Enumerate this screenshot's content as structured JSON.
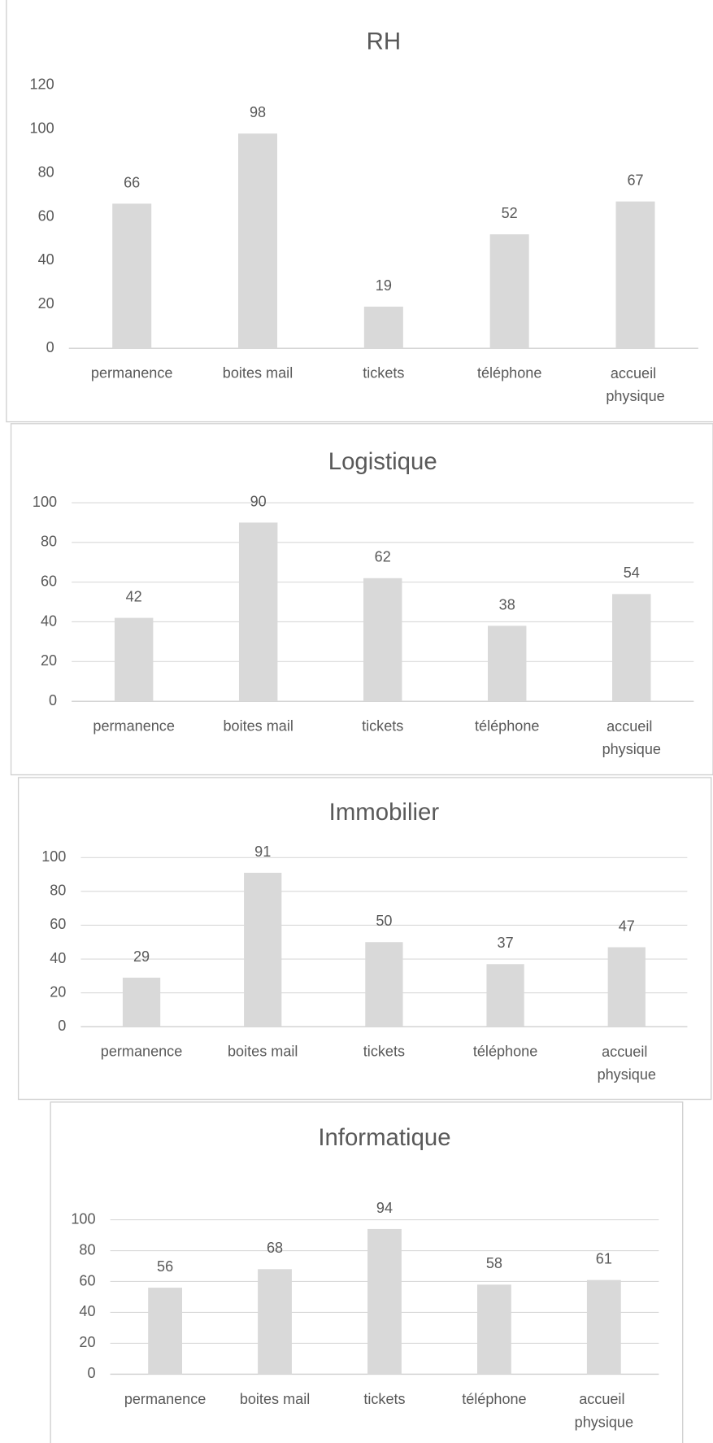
{
  "chart_data": [
    {
      "type": "bar",
      "title": "RH",
      "categories": [
        "permanence",
        "boites mail",
        "tickets",
        "téléphone",
        "accueil physique"
      ],
      "values": [
        66,
        98,
        19,
        52,
        67
      ],
      "color": "#d9d9d9",
      "ylim": [
        0,
        120
      ],
      "yticks": [
        0,
        20,
        40,
        60,
        80,
        100,
        120
      ],
      "grid": false
    },
    {
      "type": "bar",
      "title": "Logistique",
      "categories": [
        "permanence",
        "boites mail",
        "tickets",
        "téléphone",
        "accueil physique"
      ],
      "values": [
        42,
        90,
        62,
        38,
        54
      ],
      "color": "#d9d9d9",
      "ylim": [
        0,
        100
      ],
      "yticks": [
        0,
        20,
        40,
        60,
        80,
        100
      ],
      "grid": true
    },
    {
      "type": "bar",
      "title": "Immobilier",
      "categories": [
        "permanence",
        "boites mail",
        "tickets",
        "téléphone",
        "accueil physique"
      ],
      "values": [
        29,
        91,
        50,
        37,
        47
      ],
      "color": "#d9d9d9",
      "ylim": [
        0,
        100
      ],
      "yticks": [
        0,
        20,
        40,
        60,
        80,
        100
      ],
      "grid": true
    },
    {
      "type": "bar",
      "title": "Informatique",
      "categories": [
        "permanence",
        "boites mail",
        "tickets",
        "téléphone",
        "accueil physique"
      ],
      "values": [
        56,
        68,
        94,
        58,
        61
      ],
      "color": "#d9d9d9",
      "ylim": [
        0,
        100
      ],
      "yticks": [
        0,
        20,
        40,
        60,
        80,
        100
      ],
      "grid": true
    }
  ]
}
